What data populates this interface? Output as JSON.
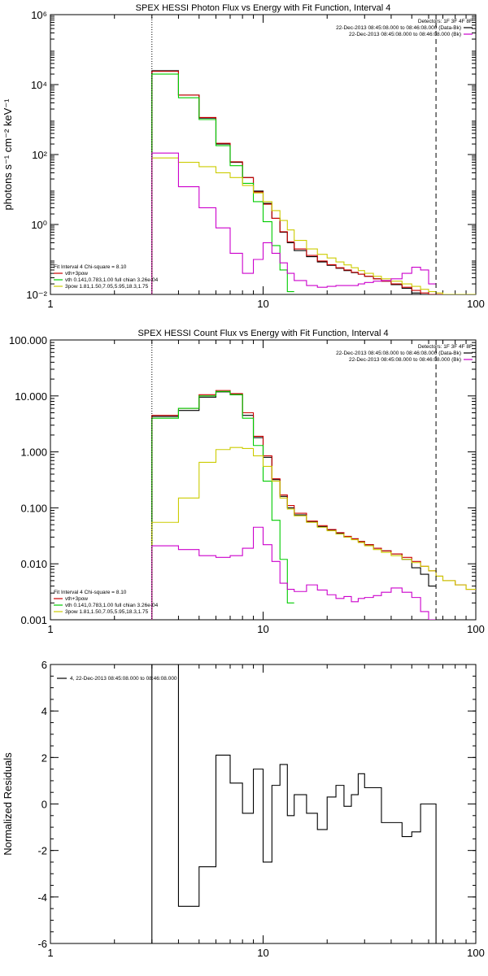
{
  "chart_data": [
    {
      "type": "line",
      "title": "SPEX HESSI Photon Flux vs Energy with Fit Function, Interval 4",
      "xlabel": "",
      "ylabel": "photons s⁻¹ cm⁻² keV⁻¹",
      "xscale": "log",
      "yscale": "log",
      "xlim": [
        1,
        100
      ],
      "ylim": [
        0.01,
        1000000
      ],
      "xticks": [
        "1",
        "10",
        "100"
      ],
      "yticks": [
        {
          "v": 0.01,
          "t": "10⁻²"
        },
        {
          "v": 1,
          "t": "10⁰"
        },
        {
          "v": 100,
          "t": "10²"
        },
        {
          "v": 10000,
          "t": "10⁴"
        },
        {
          "v": 1000000,
          "t": "10⁶"
        }
      ],
      "vlines": [
        {
          "x": 3,
          "style": "dotted",
          "color": "#000000"
        },
        {
          "x": 65,
          "style": "dashed",
          "color": "#000000"
        }
      ],
      "legend_top_right": {
        "title": "Detectors: 1F 3F 4F 8F",
        "entries": [
          {
            "text": "22-Dec-2013 08:45:08.000 to 08:46:08.000 (Data-Bk)",
            "color": "#000000"
          },
          {
            "text": "22-Dec-2013 08:45:08.000 to 08:46:08.000 (Bk)",
            "color": "#cc00cc"
          }
        ]
      },
      "legend_bottom_left": {
        "title": "Fit Interval 4   Chi-square = 8.10",
        "entries": [
          {
            "text": "vth+3pow",
            "color": "#cc0000"
          },
          {
            "text": "vth 0.141,0.783,1.00  full chian 3.26e-04",
            "color": "#00cc00"
          },
          {
            "text": "3pow 1.81,1.50,7.05,5.95,18.3,1.75",
            "color": "#cccc00"
          }
        ]
      },
      "series": [
        {
          "key": "data",
          "color": "#000000",
          "edges": [
            3,
            4,
            5,
            6,
            7,
            8,
            9,
            10,
            11,
            12,
            13,
            14,
            16,
            18,
            20,
            22,
            24,
            26,
            28,
            30,
            33,
            36,
            40,
            45,
            50,
            55,
            60,
            65
          ],
          "values": [
            25000,
            5000,
            1100,
            200,
            60,
            22,
            9,
            4,
            1.5,
            0.6,
            0.3,
            0.18,
            0.12,
            0.085,
            0.068,
            0.056,
            0.048,
            0.042,
            0.038,
            0.033,
            0.028,
            0.024,
            0.019,
            0.015,
            0.011,
            0.009,
            0.007
          ]
        },
        {
          "key": "fit",
          "color": "#cc0000",
          "edges": [
            3,
            4,
            5,
            6,
            7,
            8,
            9,
            10,
            11,
            12,
            13,
            14,
            16,
            18,
            20,
            22,
            24,
            26,
            28,
            30,
            33,
            36,
            40,
            45,
            50,
            55,
            60,
            65,
            70,
            80,
            90,
            100
          ],
          "values": [
            24000,
            5000,
            1150,
            210,
            62,
            22,
            8.5,
            3.8,
            1.5,
            0.62,
            0.32,
            0.2,
            0.13,
            0.09,
            0.071,
            0.058,
            0.05,
            0.043,
            0.038,
            0.033,
            0.028,
            0.024,
            0.02,
            0.016,
            0.013,
            0.011,
            0.009,
            0.0075,
            0.0065,
            0.005,
            0.004
          ]
        },
        {
          "key": "vth",
          "color": "#00cc00",
          "edges": [
            3,
            4,
            5,
            6,
            7,
            8,
            9,
            10,
            11,
            12,
            13,
            14
          ],
          "values": [
            20000,
            4200,
            1000,
            180,
            48,
            15,
            4.5,
            1.2,
            0.25,
            0.05,
            0.012
          ]
        },
        {
          "key": "3pow",
          "color": "#cccc00",
          "edges": [
            3,
            4,
            5,
            6,
            7,
            8,
            9,
            10,
            11,
            12,
            13,
            14,
            16,
            18,
            20,
            22,
            24,
            26,
            28,
            30,
            33,
            36,
            40,
            45,
            50,
            55,
            60,
            65,
            70,
            80,
            90,
            100
          ],
          "values": [
            80,
            60,
            45,
            30,
            22,
            13,
            8,
            4.5,
            2.5,
            1.3,
            0.7,
            0.35,
            0.2,
            0.14,
            0.11,
            0.085,
            0.07,
            0.058,
            0.048,
            0.04,
            0.033,
            0.028,
            0.024,
            0.02,
            0.017,
            0.014,
            0.012,
            0.011,
            0.0095,
            0.008,
            0.0065
          ]
        },
        {
          "key": "bkg",
          "color": "#cc00cc",
          "edges": [
            3,
            4,
            5,
            6,
            7,
            8,
            9,
            10,
            11,
            12,
            13,
            14,
            16,
            18,
            20,
            22,
            24,
            26,
            28,
            30,
            33,
            36,
            40,
            45,
            50,
            55,
            60,
            65
          ],
          "values": [
            110,
            12,
            3,
            0.8,
            0.15,
            0.04,
            0.1,
            0.3,
            0.15,
            0.08,
            0.04,
            0.025,
            0.018,
            0.016,
            0.017,
            0.018,
            0.018,
            0.018,
            0.02,
            0.022,
            0.024,
            0.025,
            0.028,
            0.04,
            0.06,
            0.05,
            0.02
          ]
        }
      ]
    },
    {
      "type": "line",
      "title": "SPEX HESSI Count Flux vs Energy with Fit Function, Interval 4",
      "xlabel": "",
      "ylabel": "",
      "xscale": "log",
      "yscale": "log",
      "xlim": [
        1,
        100
      ],
      "ylim": [
        0.001,
        100
      ],
      "xticks": [
        "1",
        "10",
        "100"
      ],
      "yticks": [
        {
          "v": 0.001,
          "t": "0.001"
        },
        {
          "v": 0.01,
          "t": "0.010"
        },
        {
          "v": 0.1,
          "t": "0.100"
        },
        {
          "v": 1,
          "t": "1.000"
        },
        {
          "v": 10,
          "t": "10.000"
        },
        {
          "v": 100,
          "t": "100.000"
        }
      ],
      "vlines": [
        {
          "x": 3,
          "style": "dotted",
          "color": "#000000"
        },
        {
          "x": 65,
          "style": "dashed",
          "color": "#000000"
        }
      ],
      "legend_top_right": {
        "title": "Detectors: 1F 3F 4F 8F",
        "entries": [
          {
            "text": "22-Dec-2013 08:45:08.000 to 08:46:08.000 (Data-Bk)",
            "color": "#000000"
          },
          {
            "text": "22-Dec-2013 08:45:08.000 to 08:46:08.000 (Bk)",
            "color": "#cc00cc"
          }
        ]
      },
      "legend_bottom_left": {
        "title": "Fit Interval 4   Chi-square = 8.10",
        "entries": [
          {
            "text": "vth+3pow",
            "color": "#cc0000"
          },
          {
            "text": "vth 0.141,0.783,1.00  full chian 3.26e-04",
            "color": "#00cc00"
          },
          {
            "text": "3pow 1.81,1.50,7.05,5.95,18.3,1.75",
            "color": "#cccc00"
          }
        ]
      },
      "series": [
        {
          "key": "data",
          "color": "#000000",
          "edges": [
            3,
            4,
            5,
            6,
            7,
            8,
            9,
            10,
            11,
            12,
            13,
            14,
            16,
            18,
            20,
            22,
            24,
            26,
            28,
            30,
            33,
            36,
            40,
            45,
            50,
            55,
            60,
            65
          ],
          "values": [
            4.3,
            5.5,
            9.5,
            11.8,
            10.5,
            4.5,
            1.8,
            0.8,
            0.32,
            0.16,
            0.1,
            0.075,
            0.056,
            0.046,
            0.04,
            0.035,
            0.03,
            0.028,
            0.025,
            0.022,
            0.019,
            0.017,
            0.015,
            0.012,
            0.0085,
            0.0065,
            0.004
          ]
        },
        {
          "key": "fit",
          "color": "#cc0000",
          "edges": [
            3,
            4,
            5,
            6,
            7,
            8,
            9,
            10,
            11,
            12,
            13,
            14,
            16,
            18,
            20,
            22,
            24,
            26,
            28,
            30,
            33,
            36,
            40,
            45,
            50,
            55,
            60,
            65,
            70,
            80,
            90,
            100
          ],
          "values": [
            4.5,
            6,
            10.5,
            12.5,
            11,
            5,
            1.9,
            0.85,
            0.33,
            0.17,
            0.11,
            0.08,
            0.058,
            0.048,
            0.041,
            0.036,
            0.031,
            0.028,
            0.025,
            0.022,
            0.019,
            0.017,
            0.015,
            0.013,
            0.011,
            0.009,
            0.0075,
            0.006,
            0.005,
            0.0042,
            0.0035
          ]
        },
        {
          "key": "vth",
          "color": "#00cc00",
          "edges": [
            3,
            4,
            5,
            6,
            7,
            8,
            9,
            10,
            11,
            12,
            13,
            14
          ],
          "values": [
            4,
            6,
            10,
            12,
            10.5,
            4,
            1.3,
            0.3,
            0.06,
            0.012,
            0.002
          ]
        },
        {
          "key": "3pow",
          "color": "#cccc00",
          "edges": [
            3,
            4,
            5,
            6,
            7,
            8,
            9,
            10,
            11,
            12,
            13,
            14,
            16,
            18,
            20,
            22,
            24,
            26,
            28,
            30,
            33,
            36,
            40,
            45,
            50,
            55,
            60,
            65,
            70,
            80,
            90,
            100
          ],
          "values": [
            0.055,
            0.15,
            0.65,
            1.1,
            1.2,
            1.15,
            0.85,
            0.55,
            0.3,
            0.15,
            0.095,
            0.072,
            0.055,
            0.045,
            0.039,
            0.034,
            0.03,
            0.027,
            0.024,
            0.021,
            0.018,
            0.016,
            0.014,
            0.012,
            0.0105,
            0.009,
            0.0075,
            0.006,
            0.005,
            0.0042,
            0.0035
          ]
        },
        {
          "key": "bkg",
          "color": "#cc00cc",
          "edges": [
            3,
            4,
            5,
            6,
            7,
            8,
            9,
            10,
            11,
            12,
            13,
            14,
            16,
            18,
            20,
            22,
            24,
            26,
            28,
            30,
            33,
            36,
            40,
            45,
            50,
            55,
            60,
            65
          ],
          "values": [
            0.021,
            0.018,
            0.014,
            0.013,
            0.014,
            0.019,
            0.045,
            0.022,
            0.011,
            0.0045,
            0.0035,
            0.0032,
            0.0042,
            0.0034,
            0.0028,
            0.0024,
            0.0026,
            0.0021,
            0.0024,
            0.0025,
            0.0027,
            0.0031,
            0.0037,
            0.0031,
            0.0025,
            0.0014,
            0.0009
          ]
        }
      ]
    },
    {
      "type": "line",
      "title": "",
      "xlabel": "",
      "ylabel": "Normalized Residuals",
      "xscale": "log",
      "yscale": "linear",
      "xlim": [
        1,
        100
      ],
      "ylim": [
        -6,
        6
      ],
      "xticks": [
        "1",
        "10",
        "100"
      ],
      "yticks": [
        {
          "v": -6,
          "t": "-6"
        },
        {
          "v": -4,
          "t": "-4"
        },
        {
          "v": -2,
          "t": "-2"
        },
        {
          "v": 0,
          "t": "0"
        },
        {
          "v": 2,
          "t": "2"
        },
        {
          "v": 4,
          "t": "4"
        },
        {
          "v": 6,
          "t": "6"
        }
      ],
      "vlines": [],
      "legend_top_left": "4, 22-Dec-2013 08:45:08.000 to 08:46:08.000",
      "series": [
        {
          "key": "residuals",
          "color": "#000000",
          "edges": [
            3,
            4,
            5,
            6,
            7,
            8,
            9,
            10,
            11,
            12,
            13,
            14,
            16,
            18,
            20,
            22,
            24,
            26,
            28,
            30,
            33,
            36,
            40,
            45,
            50,
            55,
            60,
            65
          ],
          "values": [
            6,
            -4.4,
            -2.7,
            2.1,
            0.9,
            -0.4,
            1.5,
            -2.5,
            0.8,
            1.7,
            -0.5,
            0.4,
            -0.4,
            -1.1,
            0.3,
            0.8,
            -0.1,
            0.4,
            1.3,
            0.7,
            0.7,
            -0.8,
            -0.8,
            -1.4,
            -1.2,
            0.0,
            0.0
          ]
        }
      ]
    }
  ]
}
